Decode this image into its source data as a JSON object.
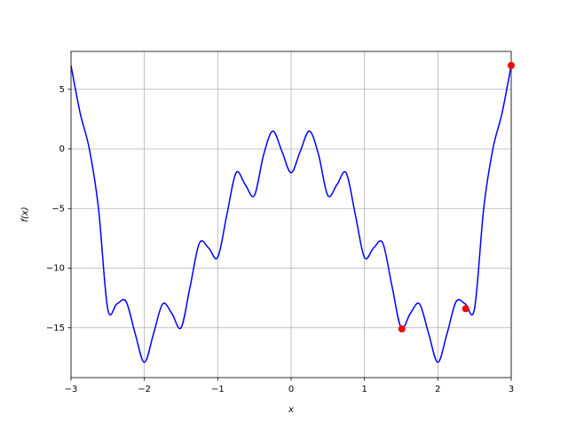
{
  "chart_data": {
    "type": "line",
    "xlabel": "x",
    "ylabel": "f(x)",
    "xlim": [
      -3,
      3
    ],
    "ylim": [
      -19.18,
      8.18
    ],
    "xticks": [
      {
        "value": -3,
        "label": "−3"
      },
      {
        "value": -2,
        "label": "−2"
      },
      {
        "value": -1,
        "label": "−1"
      },
      0,
      1,
      2,
      3
    ],
    "yticks": [
      {
        "value": -15,
        "label": "−15"
      },
      {
        "value": -10,
        "label": "−10"
      },
      {
        "value": -5,
        "label": "−5"
      },
      0,
      5
    ],
    "grid": true,
    "series": [
      {
        "type": "line",
        "color": "#0000ff",
        "x": [
          -3,
          -2.875,
          -2.75,
          -2.625,
          -2.5,
          -2.375,
          -2.25,
          -2.125,
          -2,
          -1.875,
          -1.75,
          -1.625,
          -1.5,
          -1.375,
          -1.25,
          -1.125,
          -1,
          -0.875,
          -0.75,
          -0.625,
          -0.5,
          -0.375,
          -0.25,
          -0.125,
          0,
          0.125,
          0.25,
          0.375,
          0.5,
          0.625,
          0.75,
          0.875,
          1,
          1.125,
          1.25,
          1.375,
          1.5,
          1.625,
          1.75,
          1.875,
          2,
          2.125,
          2.25,
          2.375,
          2.5,
          2.625,
          2.75,
          2.875,
          3
        ],
        "values": [
          7,
          3,
          0,
          -5,
          -13.4,
          -13.0,
          -12.8,
          -15.5,
          -17.9,
          -15.5,
          -13.0,
          -13.8,
          -15.0,
          -11.5,
          -7.9,
          -8.3,
          -9.1,
          -5.5,
          -2.0,
          -3.0,
          -3.9,
          -0.5,
          1.5,
          -0.2,
          -2,
          -0.2,
          1.5,
          -0.5,
          -3.9,
          -3.0,
          -2.0,
          -5.5,
          -9.1,
          -8.3,
          -7.9,
          -11.5,
          -15.0,
          -13.8,
          -13.0,
          -15.5,
          -17.9,
          -15.5,
          -12.8,
          -13.0,
          -13.4,
          -5,
          0,
          3,
          7
        ]
      },
      {
        "type": "scatter",
        "color": "#ff0000",
        "x": [
          1.51,
          2.38,
          3.0
        ],
        "values": [
          -15.1,
          -13.4,
          7.0
        ]
      }
    ]
  }
}
